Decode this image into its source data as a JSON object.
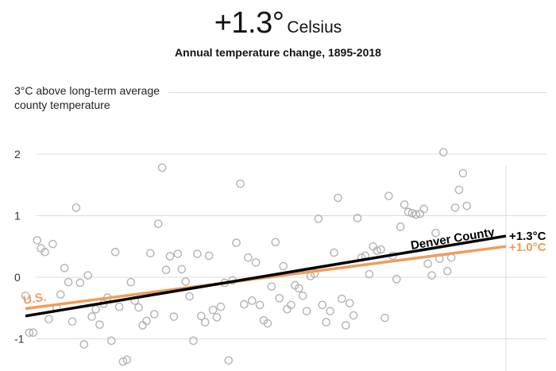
{
  "header": {
    "value": "+1.3°",
    "unit": "Celsius",
    "subtitle": "Annual temperature change, 1895-2018"
  },
  "colors": {
    "county": "#000000",
    "us": "#ef9d5a",
    "points": "#b3b3b3",
    "grid": "#dcdcdc"
  },
  "chart_data": {
    "type": "scatter",
    "ylabel": "3°C above long-term average county temperature",
    "ylabel_lines": [
      "3°C above long-term average",
      "county temperature"
    ],
    "ylim": [
      -1.3,
      3
    ],
    "xlim": [
      1895,
      2018
    ],
    "yticks": [
      {
        "value": 2,
        "label": "2"
      },
      {
        "value": 1,
        "label": "1"
      },
      {
        "value": 0,
        "label": "0"
      },
      {
        "value": -1,
        "label": "-1"
      }
    ],
    "grid": true,
    "series": [
      {
        "name": "Annual anomaly",
        "points": [
          [
            1895,
            -0.3
          ],
          [
            1896,
            -0.9
          ],
          [
            1897,
            -0.9
          ],
          [
            1898,
            0.6
          ],
          [
            1899,
            0.47
          ],
          [
            1900,
            0.41
          ],
          [
            1901,
            -0.68
          ],
          [
            1902,
            0.54
          ],
          [
            1903,
            -0.5
          ],
          [
            1904,
            -0.28
          ],
          [
            1905,
            0.15
          ],
          [
            1906,
            -0.08
          ],
          [
            1907,
            -0.72
          ],
          [
            1908,
            1.13
          ],
          [
            1909,
            -0.09
          ],
          [
            1910,
            -1.09
          ],
          [
            1911,
            0.03
          ],
          [
            1912,
            -0.64
          ],
          [
            1913,
            -0.52
          ],
          [
            1914,
            -0.77
          ],
          [
            1915,
            -0.43
          ],
          [
            1916,
            -0.33
          ],
          [
            1917,
            -1.03
          ],
          [
            1918,
            0.41
          ],
          [
            1919,
            -0.48
          ],
          [
            1920,
            -1.37
          ],
          [
            1921,
            -1.34
          ],
          [
            1922,
            -0.08
          ],
          [
            1923,
            -0.38
          ],
          [
            1924,
            -0.49
          ],
          [
            1925,
            -0.78
          ],
          [
            1926,
            -0.71
          ],
          [
            1927,
            0.39
          ],
          [
            1928,
            -0.6
          ],
          [
            1929,
            0.87
          ],
          [
            1930,
            1.78
          ],
          [
            1931,
            0.12
          ],
          [
            1932,
            0.34
          ],
          [
            1933,
            -0.64
          ],
          [
            1934,
            0.38
          ],
          [
            1935,
            0.13
          ],
          [
            1936,
            -0.07
          ],
          [
            1937,
            -0.31
          ],
          [
            1938,
            -1.03
          ],
          [
            1939,
            0.38
          ],
          [
            1940,
            -0.63
          ],
          [
            1941,
            -0.73
          ],
          [
            1942,
            0.35
          ],
          [
            1943,
            -0.53
          ],
          [
            1944,
            -0.65
          ],
          [
            1945,
            -0.48
          ],
          [
            1946,
            -0.09
          ],
          [
            1947,
            -1.35
          ],
          [
            1948,
            -0.05
          ],
          [
            1949,
            0.56
          ],
          [
            1950,
            1.52
          ],
          [
            1951,
            -0.44
          ],
          [
            1952,
            0.32
          ],
          [
            1953,
            -0.38
          ],
          [
            1954,
            0.24
          ],
          [
            1955,
            -0.45
          ],
          [
            1956,
            -0.7
          ],
          [
            1957,
            -0.75
          ],
          [
            1958,
            -0.15
          ],
          [
            1959,
            0.57
          ],
          [
            1960,
            -0.34
          ],
          [
            1961,
            0.18
          ],
          [
            1962,
            -0.52
          ],
          [
            1963,
            -0.45
          ],
          [
            1964,
            -0.13
          ],
          [
            1965,
            -0.18
          ],
          [
            1966,
            -0.3
          ],
          [
            1967,
            -0.55
          ],
          [
            1968,
            0.02
          ],
          [
            1969,
            0.06
          ],
          [
            1970,
            0.95
          ],
          [
            1971,
            -0.45
          ],
          [
            1972,
            -0.73
          ],
          [
            1973,
            -0.55
          ],
          [
            1974,
            0.4
          ],
          [
            1975,
            1.29
          ],
          [
            1976,
            -0.35
          ],
          [
            1977,
            -0.78
          ],
          [
            1978,
            -0.42
          ],
          [
            1979,
            -0.62
          ],
          [
            1980,
            0.96
          ],
          [
            1981,
            0.32
          ],
          [
            1982,
            0.35
          ],
          [
            1983,
            0.05
          ],
          [
            1984,
            0.5
          ],
          [
            1985,
            0.43
          ],
          [
            1986,
            0.45
          ],
          [
            1987,
            -0.66
          ],
          [
            1988,
            1.32
          ],
          [
            1989,
            0.35
          ],
          [
            1990,
            -0.03
          ],
          [
            1991,
            0.82
          ],
          [
            1992,
            1.18
          ],
          [
            1993,
            1.06
          ],
          [
            1994,
            1.04
          ],
          [
            1995,
            1.02
          ],
          [
            1996,
            1.03
          ],
          [
            1997,
            1.11
          ],
          [
            1998,
            0.22
          ],
          [
            1999,
            0.03
          ],
          [
            2000,
            0.72
          ],
          [
            2001,
            0.3
          ],
          [
            2002,
            2.03
          ],
          [
            2003,
            0.1
          ],
          [
            2004,
            0.32
          ],
          [
            2005,
            1.13
          ],
          [
            2006,
            1.42
          ],
          [
            2007,
            1.69
          ],
          [
            2008,
            1.16
          ]
        ]
      },
      {
        "name": "Denver County",
        "label": "Denver County",
        "end_label": "+1.3°C",
        "trend": [
          [
            1895,
            -0.63
          ],
          [
            2018,
            0.67
          ]
        ]
      },
      {
        "name": "U.S.",
        "label": "U.S.",
        "end_label": "+1.0°C",
        "trend": [
          [
            1895,
            -0.51
          ],
          [
            2018,
            0.5
          ]
        ]
      }
    ]
  }
}
